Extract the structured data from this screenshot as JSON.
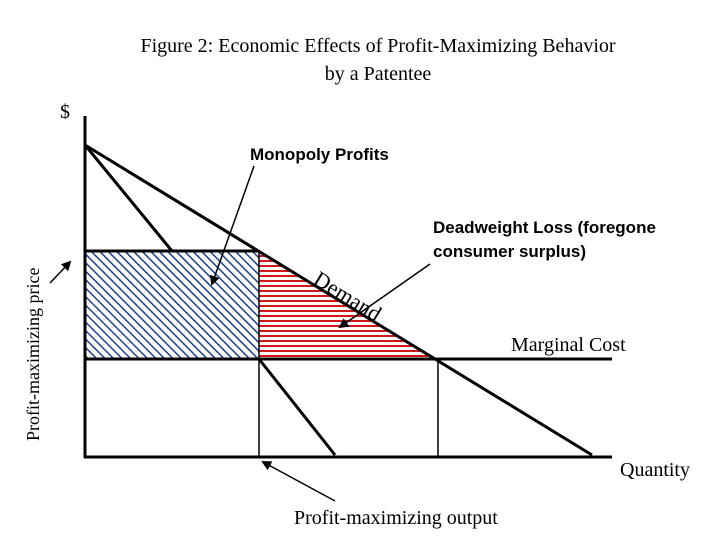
{
  "title": {
    "line1": "Figure 2:  Economic Effects of  Profit-Maximizing Behavior",
    "line2": "by a Patentee"
  },
  "axes": {
    "y_label": "$",
    "x_label": "Quantity"
  },
  "labels": {
    "monopoly_profits": "Monopoly Profits",
    "deadweight_loss_line1": "Deadweight Loss (foregone",
    "deadweight_loss_line2": "consumer surplus)",
    "demand": "Demand",
    "marginal_cost": "Marginal Cost",
    "profit_max_price": "Profit-maximizing price",
    "profit_max_output": "Profit-maximizing output"
  },
  "colors": {
    "monopoly_profits_hatch": "#1f3f8f",
    "deadweight_loss_hatch": "#d01818",
    "lines": "#000000"
  }
}
